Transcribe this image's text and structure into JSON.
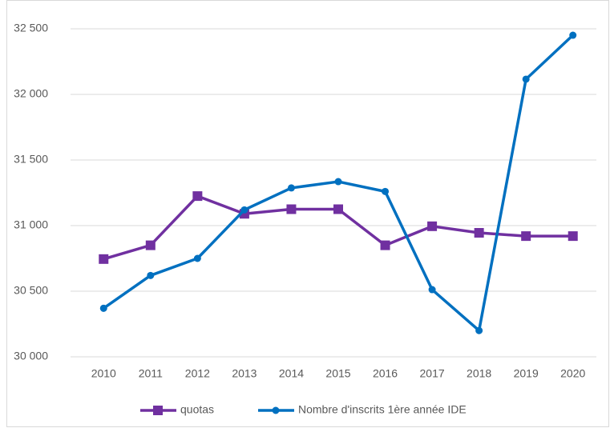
{
  "chart_data": {
    "type": "line",
    "categories": [
      "2010",
      "2011",
      "2012",
      "2013",
      "2014",
      "2015",
      "2016",
      "2017",
      "2018",
      "2019",
      "2020"
    ],
    "series": [
      {
        "name": "quotas",
        "color": "#7030a0",
        "marker": "square",
        "values": [
          30745,
          30850,
          31225,
          31090,
          31125,
          31125,
          30850,
          30995,
          30945,
          30920,
          30920
        ]
      },
      {
        "name": "Nombre d'inscrits 1ère année IDE",
        "color": "#0070c0",
        "marker": "circle",
        "values": [
          30370,
          30620,
          30750,
          31120,
          31287,
          31335,
          31260,
          30512,
          30200,
          32116,
          32451
        ]
      }
    ],
    "ylim": [
      30000,
      32500
    ],
    "yticks": [
      {
        "value": 30000,
        "label": "30 000"
      },
      {
        "value": 30500,
        "label": "30 500"
      },
      {
        "value": 31000,
        "label": "31 000"
      },
      {
        "value": 31500,
        "label": "31 500"
      },
      {
        "value": 32000,
        "label": "32 000"
      },
      {
        "value": 32500,
        "label": "32 500"
      }
    ],
    "grid": true,
    "legend": "bottom"
  }
}
